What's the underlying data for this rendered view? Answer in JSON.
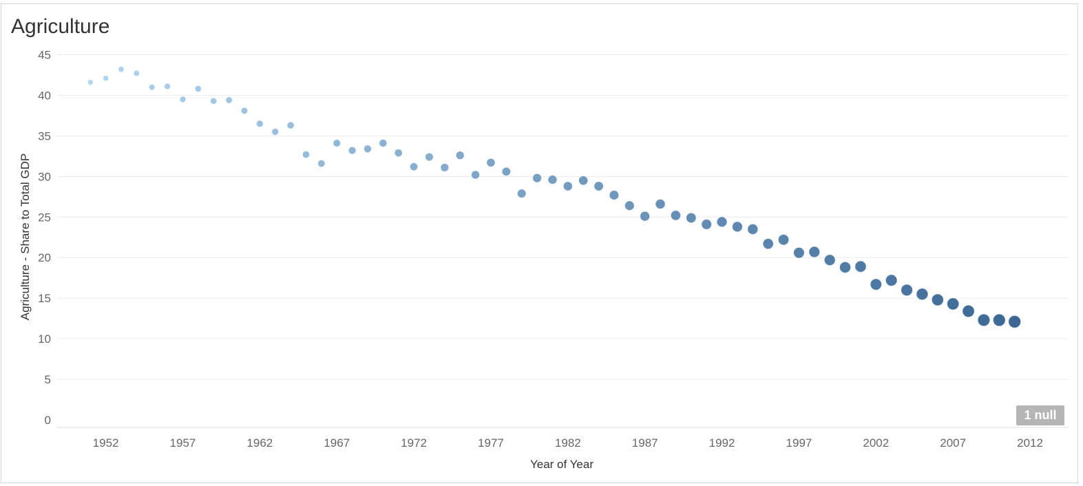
{
  "chart_data": {
    "type": "scatter",
    "title": "Agriculture",
    "xlabel": "Year of Year",
    "ylabel": "Agriculture - Share to Total GDP",
    "xlim": [
      1948.8,
      2014.5
    ],
    "ylim": [
      0,
      45
    ],
    "x_ticks": [
      "1952",
      "1957",
      "1962",
      "1967",
      "1972",
      "1977",
      "1982",
      "1987",
      "1992",
      "1997",
      "2002",
      "2007",
      "2012"
    ],
    "y_ticks": [
      "0",
      "5",
      "10",
      "15",
      "20",
      "25",
      "30",
      "35",
      "40",
      "45"
    ],
    "grid": true,
    "legend": "none",
    "color_range": [
      "#a8d1ed",
      "#2a5a8c"
    ],
    "null_count_label": "1 null",
    "points": [
      {
        "x": 1951,
        "y": 41.6
      },
      {
        "x": 1952,
        "y": 42.1
      },
      {
        "x": 1953,
        "y": 43.2
      },
      {
        "x": 1954,
        "y": 42.7
      },
      {
        "x": 1955,
        "y": 41.0
      },
      {
        "x": 1956,
        "y": 41.1
      },
      {
        "x": 1957,
        "y": 39.5
      },
      {
        "x": 1958,
        "y": 40.8
      },
      {
        "x": 1959,
        "y": 39.3
      },
      {
        "x": 1960,
        "y": 39.4
      },
      {
        "x": 1961,
        "y": 38.1
      },
      {
        "x": 1962,
        "y": 36.5
      },
      {
        "x": 1963,
        "y": 35.5
      },
      {
        "x": 1964,
        "y": 36.3
      },
      {
        "x": 1965,
        "y": 32.7
      },
      {
        "x": 1966,
        "y": 31.6
      },
      {
        "x": 1967,
        "y": 34.1
      },
      {
        "x": 1968,
        "y": 33.2
      },
      {
        "x": 1969,
        "y": 33.4
      },
      {
        "x": 1970,
        "y": 34.1
      },
      {
        "x": 1971,
        "y": 32.9
      },
      {
        "x": 1972,
        "y": 31.2
      },
      {
        "x": 1973,
        "y": 32.4
      },
      {
        "x": 1974,
        "y": 31.1
      },
      {
        "x": 1975,
        "y": 32.6
      },
      {
        "x": 1976,
        "y": 30.2
      },
      {
        "x": 1977,
        "y": 31.7
      },
      {
        "x": 1978,
        "y": 30.6
      },
      {
        "x": 1979,
        "y": 27.9
      },
      {
        "x": 1980,
        "y": 29.8
      },
      {
        "x": 1981,
        "y": 29.6
      },
      {
        "x": 1982,
        "y": 28.8
      },
      {
        "x": 1983,
        "y": 29.5
      },
      {
        "x": 1984,
        "y": 28.8
      },
      {
        "x": 1985,
        "y": 27.7
      },
      {
        "x": 1986,
        "y": 26.4
      },
      {
        "x": 1987,
        "y": 25.1
      },
      {
        "x": 1988,
        "y": 26.6
      },
      {
        "x": 1989,
        "y": 25.2
      },
      {
        "x": 1990,
        "y": 24.9
      },
      {
        "x": 1991,
        "y": 24.1
      },
      {
        "x": 1992,
        "y": 24.4
      },
      {
        "x": 1993,
        "y": 23.8
      },
      {
        "x": 1994,
        "y": 23.5
      },
      {
        "x": 1995,
        "y": 21.7
      },
      {
        "x": 1996,
        "y": 22.2
      },
      {
        "x": 1997,
        "y": 20.6
      },
      {
        "x": 1998,
        "y": 20.7
      },
      {
        "x": 1999,
        "y": 19.7
      },
      {
        "x": 2000,
        "y": 18.8
      },
      {
        "x": 2001,
        "y": 18.9
      },
      {
        "x": 2002,
        "y": 16.7
      },
      {
        "x": 2003,
        "y": 17.2
      },
      {
        "x": 2004,
        "y": 16.0
      },
      {
        "x": 2005,
        "y": 15.5
      },
      {
        "x": 2006,
        "y": 14.8
      },
      {
        "x": 2007,
        "y": 14.3
      },
      {
        "x": 2008,
        "y": 13.4
      },
      {
        "x": 2009,
        "y": 12.3
      },
      {
        "x": 2010,
        "y": 12.3
      },
      {
        "x": 2011,
        "y": 12.1
      }
    ]
  }
}
